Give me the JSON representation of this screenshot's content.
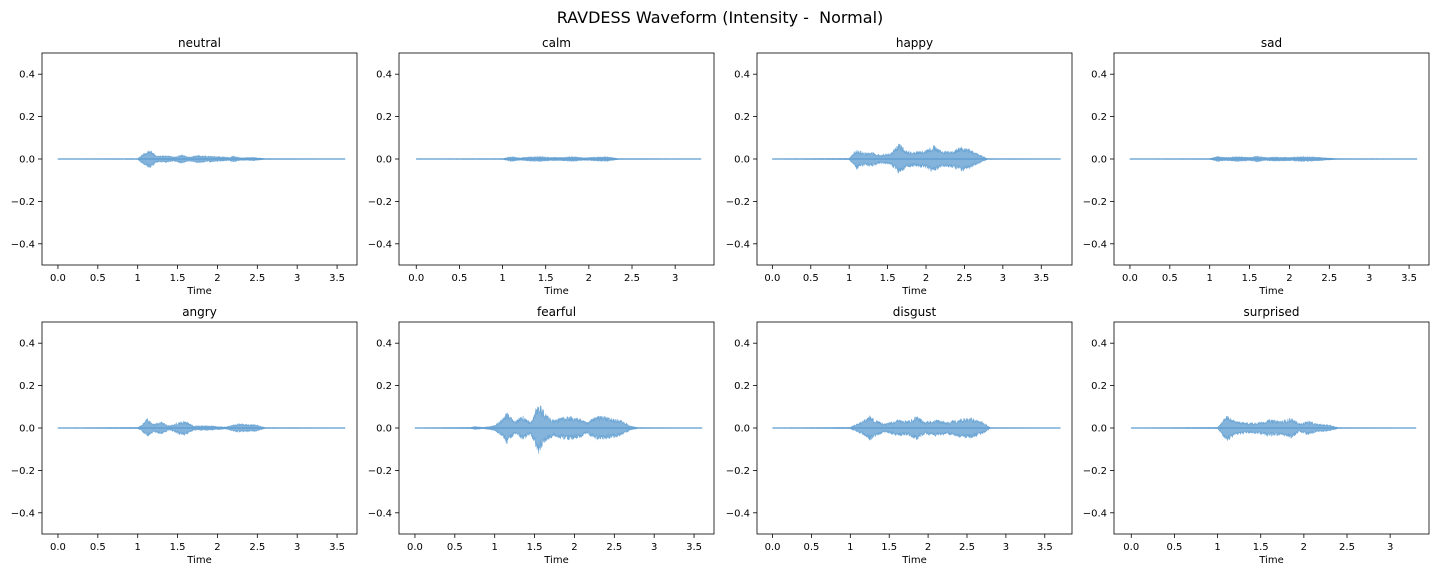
{
  "figure": {
    "title": "RAVDESS Waveform (Intensity -  Normal)",
    "wave_color": "#5b9bcf"
  },
  "chart_data": [
    {
      "type": "area",
      "title": "neutral",
      "xlabel": "Time",
      "ylabel": "",
      "xlim": [
        -0.2,
        3.75
      ],
      "ylim": [
        -0.5,
        0.5
      ],
      "xticks": [
        0,
        0.5,
        1,
        1.5,
        2,
        2.5,
        3,
        3.5
      ],
      "yticks": [
        -0.4,
        -0.2,
        0.0,
        0.2,
        0.4
      ],
      "duration": 3.6,
      "envelope": [
        [
          0,
          0.001
        ],
        [
          1.0,
          0.002
        ],
        [
          1.08,
          0.03
        ],
        [
          1.15,
          0.045
        ],
        [
          1.25,
          0.015
        ],
        [
          1.35,
          0.018
        ],
        [
          1.45,
          0.01
        ],
        [
          1.55,
          0.02
        ],
        [
          1.65,
          0.01
        ],
        [
          1.75,
          0.018
        ],
        [
          1.85,
          0.015
        ],
        [
          2.0,
          0.012
        ],
        [
          2.15,
          0.008
        ],
        [
          2.2,
          0.015
        ],
        [
          2.3,
          0.006
        ],
        [
          2.45,
          0.008
        ],
        [
          2.6,
          0.002
        ],
        [
          3.6,
          0.001
        ]
      ]
    },
    {
      "type": "area",
      "title": "calm",
      "xlabel": "Time",
      "ylabel": "",
      "xlim": [
        -0.2,
        3.45
      ],
      "ylim": [
        -0.5,
        0.5
      ],
      "xticks": [
        0,
        0.5,
        1,
        1.5,
        2,
        2.5,
        3
      ],
      "yticks": [
        -0.4,
        -0.2,
        0.0,
        0.2,
        0.4
      ],
      "duration": 3.3,
      "envelope": [
        [
          0,
          0.001
        ],
        [
          1.0,
          0.002
        ],
        [
          1.1,
          0.012
        ],
        [
          1.2,
          0.006
        ],
        [
          1.3,
          0.01
        ],
        [
          1.45,
          0.012
        ],
        [
          1.55,
          0.008
        ],
        [
          1.7,
          0.008
        ],
        [
          1.8,
          0.012
        ],
        [
          1.95,
          0.006
        ],
        [
          2.1,
          0.01
        ],
        [
          2.2,
          0.012
        ],
        [
          2.35,
          0.002
        ],
        [
          3.3,
          0.001
        ]
      ]
    },
    {
      "type": "area",
      "title": "happy",
      "xlabel": "Time",
      "ylabel": "",
      "xlim": [
        -0.2,
        3.9
      ],
      "ylim": [
        -0.5,
        0.5
      ],
      "xticks": [
        0,
        0.5,
        1,
        1.5,
        2,
        2.5,
        3,
        3.5
      ],
      "yticks": [
        -0.4,
        -0.2,
        0.0,
        0.2,
        0.4
      ],
      "duration": 3.75,
      "envelope": [
        [
          0,
          0.001
        ],
        [
          1.0,
          0.003
        ],
        [
          1.1,
          0.05
        ],
        [
          1.2,
          0.03
        ],
        [
          1.3,
          0.035
        ],
        [
          1.4,
          0.02
        ],
        [
          1.55,
          0.03
        ],
        [
          1.65,
          0.075
        ],
        [
          1.75,
          0.04
        ],
        [
          1.85,
          0.035
        ],
        [
          2.0,
          0.045
        ],
        [
          2.1,
          0.065
        ],
        [
          2.2,
          0.04
        ],
        [
          2.35,
          0.04
        ],
        [
          2.45,
          0.06
        ],
        [
          2.55,
          0.05
        ],
        [
          2.7,
          0.02
        ],
        [
          2.8,
          0.002
        ],
        [
          3.75,
          0.001
        ]
      ]
    },
    {
      "type": "area",
      "title": "sad",
      "xlabel": "Time",
      "ylabel": "",
      "xlim": [
        -0.2,
        3.75
      ],
      "ylim": [
        -0.5,
        0.5
      ],
      "xticks": [
        0,
        0.5,
        1,
        1.5,
        2,
        2.5,
        3,
        3.5
      ],
      "yticks": [
        -0.4,
        -0.2,
        0.0,
        0.2,
        0.4
      ],
      "duration": 3.6,
      "envelope": [
        [
          0,
          0.001
        ],
        [
          1.0,
          0.002
        ],
        [
          1.1,
          0.012
        ],
        [
          1.2,
          0.008
        ],
        [
          1.35,
          0.012
        ],
        [
          1.5,
          0.008
        ],
        [
          1.6,
          0.014
        ],
        [
          1.7,
          0.008
        ],
        [
          1.85,
          0.01
        ],
        [
          2.0,
          0.008
        ],
        [
          2.15,
          0.012
        ],
        [
          2.3,
          0.01
        ],
        [
          2.45,
          0.006
        ],
        [
          2.6,
          0.002
        ],
        [
          3.6,
          0.001
        ]
      ]
    },
    {
      "type": "area",
      "title": "angry",
      "xlabel": "Time",
      "ylabel": "",
      "xlim": [
        -0.2,
        3.75
      ],
      "ylim": [
        -0.5,
        0.5
      ],
      "xticks": [
        0,
        0.5,
        1,
        1.5,
        2,
        2.5,
        3,
        3.5
      ],
      "yticks": [
        -0.4,
        -0.2,
        0.0,
        0.2,
        0.4
      ],
      "duration": 3.6,
      "envelope": [
        [
          0,
          0.001
        ],
        [
          1.0,
          0.003
        ],
        [
          1.05,
          0.015
        ],
        [
          1.12,
          0.045
        ],
        [
          1.2,
          0.02
        ],
        [
          1.3,
          0.03
        ],
        [
          1.4,
          0.01
        ],
        [
          1.52,
          0.03
        ],
        [
          1.6,
          0.035
        ],
        [
          1.7,
          0.01
        ],
        [
          1.8,
          0.012
        ],
        [
          1.95,
          0.01
        ],
        [
          2.1,
          0.005
        ],
        [
          2.25,
          0.02
        ],
        [
          2.35,
          0.018
        ],
        [
          2.5,
          0.015
        ],
        [
          2.6,
          0.002
        ],
        [
          3.6,
          0.001
        ]
      ]
    },
    {
      "type": "area",
      "title": "fearful",
      "xlabel": "Time",
      "ylabel": "",
      "xlim": [
        -0.2,
        3.75
      ],
      "ylim": [
        -0.5,
        0.5
      ],
      "xticks": [
        0,
        0.5,
        1,
        1.5,
        2,
        2.5,
        3,
        3.5
      ],
      "yticks": [
        -0.4,
        -0.2,
        0.0,
        0.2,
        0.4
      ],
      "duration": 3.6,
      "envelope": [
        [
          0,
          0.001
        ],
        [
          0.7,
          0.003
        ],
        [
          0.75,
          0.008
        ],
        [
          0.85,
          0.003
        ],
        [
          1.0,
          0.012
        ],
        [
          1.1,
          0.045
        ],
        [
          1.15,
          0.08
        ],
        [
          1.25,
          0.03
        ],
        [
          1.35,
          0.06
        ],
        [
          1.45,
          0.03
        ],
        [
          1.55,
          0.125
        ],
        [
          1.65,
          0.06
        ],
        [
          1.75,
          0.04
        ],
        [
          1.9,
          0.06
        ],
        [
          2.05,
          0.05
        ],
        [
          2.15,
          0.03
        ],
        [
          2.3,
          0.06
        ],
        [
          2.45,
          0.05
        ],
        [
          2.6,
          0.035
        ],
        [
          2.7,
          0.01
        ],
        [
          2.8,
          0.002
        ],
        [
          3.6,
          0.001
        ]
      ]
    },
    {
      "type": "area",
      "title": "disgust",
      "xlabel": "Time",
      "ylabel": "",
      "xlim": [
        -0.2,
        3.85
      ],
      "ylim": [
        -0.5,
        0.5
      ],
      "xticks": [
        0,
        0.5,
        1,
        1.5,
        2,
        2.5,
        3,
        3.5
      ],
      "yticks": [
        -0.4,
        -0.2,
        0.0,
        0.2,
        0.4
      ],
      "duration": 3.7,
      "envelope": [
        [
          0,
          0.001
        ],
        [
          1.0,
          0.003
        ],
        [
          1.05,
          0.015
        ],
        [
          1.15,
          0.03
        ],
        [
          1.25,
          0.06
        ],
        [
          1.35,
          0.035
        ],
        [
          1.45,
          0.02
        ],
        [
          1.6,
          0.04
        ],
        [
          1.75,
          0.035
        ],
        [
          1.85,
          0.06
        ],
        [
          1.95,
          0.03
        ],
        [
          2.1,
          0.04
        ],
        [
          2.25,
          0.03
        ],
        [
          2.4,
          0.045
        ],
        [
          2.55,
          0.05
        ],
        [
          2.7,
          0.03
        ],
        [
          2.8,
          0.002
        ],
        [
          3.7,
          0.001
        ]
      ]
    },
    {
      "type": "area",
      "title": "surprised",
      "xlabel": "Time",
      "ylabel": "",
      "xlim": [
        -0.2,
        3.45
      ],
      "ylim": [
        -0.5,
        0.5
      ],
      "xticks": [
        0,
        0.5,
        1,
        1.5,
        2,
        2.5,
        3
      ],
      "yticks": [
        -0.4,
        -0.2,
        0.0,
        0.2,
        0.4
      ],
      "duration": 3.3,
      "envelope": [
        [
          0,
          0.001
        ],
        [
          1.0,
          0.003
        ],
        [
          1.05,
          0.03
        ],
        [
          1.1,
          0.065
        ],
        [
          1.2,
          0.035
        ],
        [
          1.35,
          0.025
        ],
        [
          1.5,
          0.03
        ],
        [
          1.6,
          0.04
        ],
        [
          1.75,
          0.035
        ],
        [
          1.85,
          0.05
        ],
        [
          1.95,
          0.02
        ],
        [
          2.05,
          0.035
        ],
        [
          2.15,
          0.02
        ],
        [
          2.3,
          0.015
        ],
        [
          2.4,
          0.002
        ],
        [
          3.3,
          0.001
        ]
      ]
    }
  ]
}
